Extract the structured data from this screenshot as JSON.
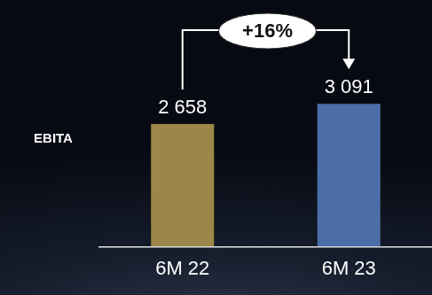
{
  "chart_data": {
    "type": "bar",
    "ylabel": "EBITA",
    "annotation": "+16%",
    "categories": [
      "6M 22",
      "6M 23"
    ],
    "values": [
      2658,
      3091
    ],
    "value_labels": [
      "2 658",
      "3 091"
    ],
    "data_labels": true,
    "colors": [
      "#9b8747",
      "#4b6ea8"
    ],
    "ylim": [
      0,
      5000
    ],
    "grid": false,
    "tick_labels": "x"
  }
}
